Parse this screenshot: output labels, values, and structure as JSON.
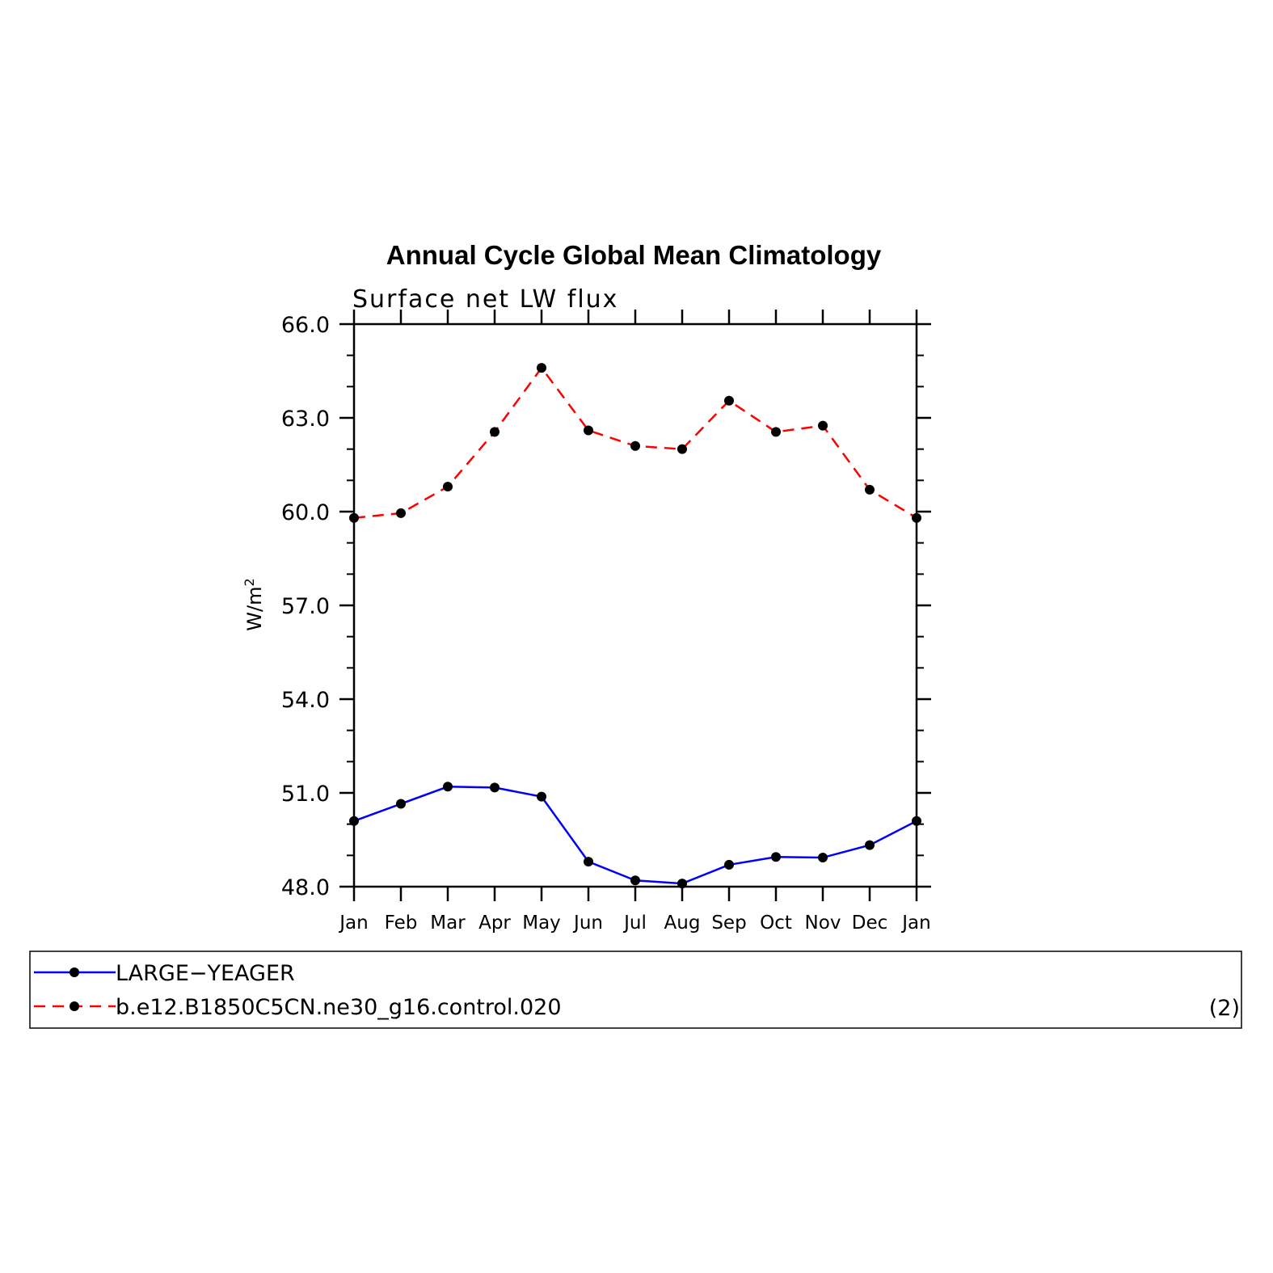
{
  "chart_data": {
    "type": "line",
    "title": "Annual Cycle Global Mean Climatology",
    "subtitle": "Surface net LW flux",
    "ylabel_base": "W/m",
    "ylabel_sup": "2",
    "xlabel": "",
    "categories": [
      "Jan",
      "Feb",
      "Mar",
      "Apr",
      "May",
      "Jun",
      "Jul",
      "Aug",
      "Sep",
      "Oct",
      "Nov",
      "Dec",
      "Jan"
    ],
    "ylim": [
      48.0,
      66.0
    ],
    "yticks": [
      "48.0",
      "51.0",
      "54.0",
      "57.0",
      "60.0",
      "63.0",
      "66.0"
    ],
    "grid": false,
    "legend_position": "bottom",
    "legend_note": "(2)",
    "series": [
      {
        "name": "LARGE−YEAGER",
        "color": "#0000ff",
        "dash": "solid",
        "values": [
          50.1,
          50.65,
          51.2,
          51.17,
          50.88,
          48.8,
          48.2,
          48.1,
          48.7,
          48.95,
          48.93,
          49.33,
          50.1
        ]
      },
      {
        "name": "b.e12.B1850C5CN.ne30_g16.control.020",
        "color": "#ff0000",
        "dash": "dashed",
        "values": [
          59.8,
          59.95,
          60.8,
          62.55,
          64.6,
          62.6,
          62.1,
          62.0,
          63.55,
          62.55,
          62.75,
          60.7,
          59.8
        ]
      }
    ]
  }
}
